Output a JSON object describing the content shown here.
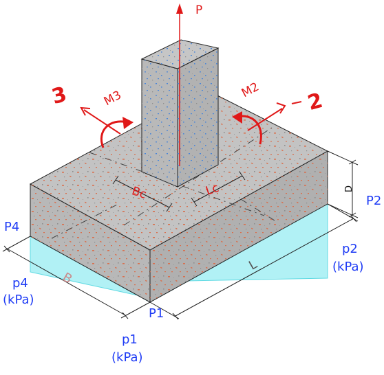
{
  "labels": {
    "P": "P",
    "M2": "M2",
    "M3": "M3",
    "axis2": "2",
    "axis3": "3",
    "Bc": "Bc",
    "Lc": "Lc",
    "D": "D",
    "B": "B",
    "L": "L",
    "P1": "P1",
    "P2": "P2",
    "P4": "P4",
    "p1_line1": "p1",
    "p1_line2": "(kPa)",
    "p2_line1": "p2",
    "p2_line2": "(kPa)",
    "p4_line1": "p4",
    "p4_line2": "(kPa)"
  },
  "colors": {
    "concrete": "#bdbdbd",
    "concrete_top": "#c4c4c4",
    "concrete_side": "#b5b5b5",
    "speckle_red": "#d8704e",
    "speckle_blue": "#4a86d8",
    "pressure_fill": "#a9f0f4",
    "pressure_stroke": "#4fd6e0",
    "load_red": "#e01818",
    "label_blue": "#1f3cf5"
  }
}
